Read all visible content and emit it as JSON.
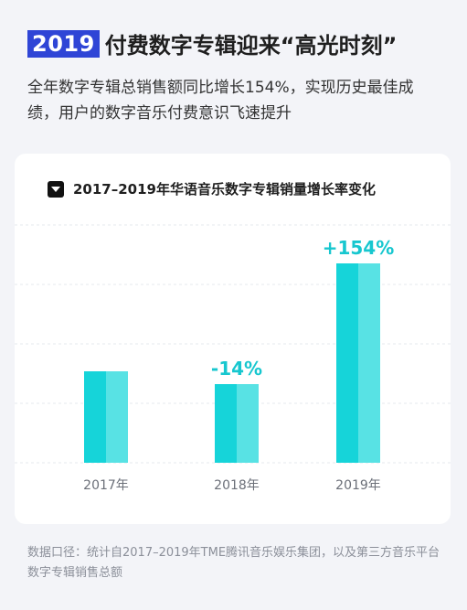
{
  "header": {
    "year": "2019",
    "title": "付费数字专辑迎来“高光时刻”",
    "subtitle": "全年数字专辑总销售额同比增长154%，实现历史最佳成绩，用户的数字音乐付费意识飞速提升"
  },
  "footnote": "数据口径：统计自2017–2019年TME腾讯音乐娱乐集团，以及第三方音乐平台数字专辑销售总额",
  "colors": {
    "bar_left": "#16d4d9",
    "bar_right": "#58e2e4",
    "label": "#17c7cf",
    "badge": "#2f45d6"
  },
  "chart_data": {
    "type": "bar",
    "title": "2017–2019年华语音乐数字专辑销量增长率变化",
    "categories": [
      "2017年",
      "2018年",
      "2019年"
    ],
    "values": [
      1.0,
      0.86,
      2.18
    ],
    "value_unit": "relative sales (2017 = 1.0)",
    "data_labels": [
      "",
      "-14%",
      "+154%"
    ],
    "ylim": [
      0,
      2.6
    ],
    "grid": true,
    "xlabel": "",
    "ylabel": ""
  }
}
